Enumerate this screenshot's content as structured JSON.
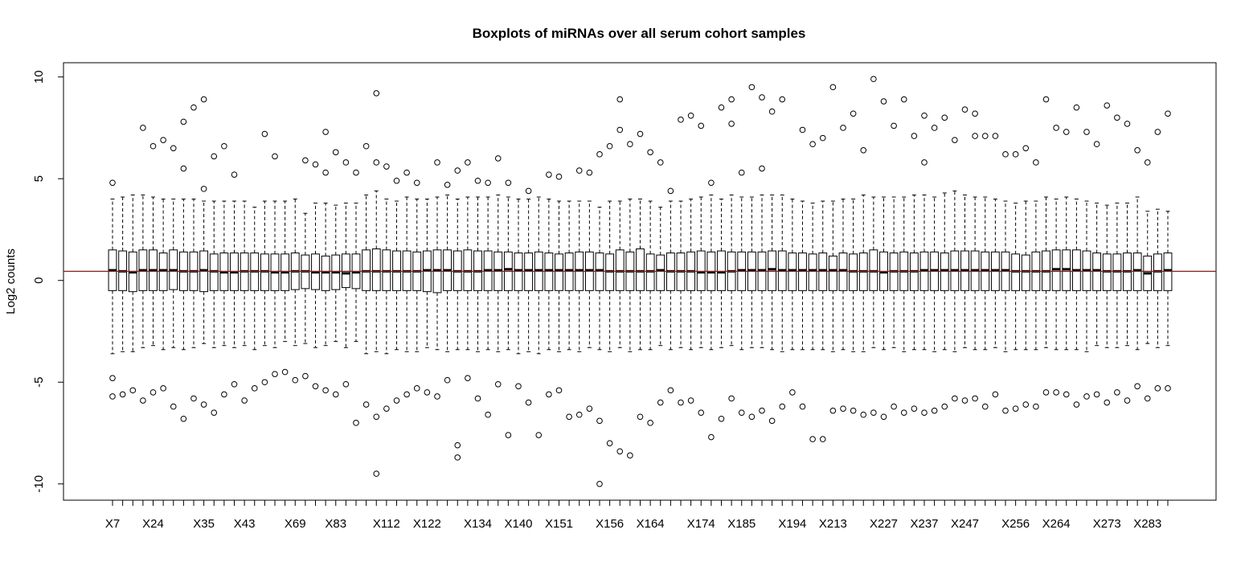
{
  "chart_data": {
    "type": "box",
    "title": "Boxplots of miRNAs over all serum cohort samples",
    "xlabel": "",
    "ylabel": "Log2 counts",
    "ylim": [
      -10.8,
      10.7
    ],
    "yticks": [
      -10,
      -5,
      0,
      5,
      10
    ],
    "xtick_labels": [
      "X7",
      "X24",
      "X35",
      "X43",
      "X69",
      "X83",
      "X112",
      "X122",
      "X134",
      "X140",
      "X151",
      "X156",
      "X164",
      "X174",
      "X185",
      "X194",
      "X213",
      "X227",
      "X237",
      "X247",
      "X256",
      "X264",
      "X273",
      "X283"
    ],
    "xtick_label_every": 2,
    "sample_count": 105,
    "reference_line": {
      "value": 0.45,
      "color": "#cc0000"
    },
    "box_summary": {
      "q1": [
        -0.5,
        -0.5,
        -0.55,
        -0.5,
        -0.5,
        -0.5,
        -0.45,
        -0.5,
        -0.5,
        -0.55,
        -0.5,
        -0.5,
        -0.5,
        -0.5,
        -0.5,
        -0.5,
        -0.5,
        -0.5,
        -0.45,
        -0.4,
        -0.45,
        -0.5,
        -0.45,
        -0.35,
        -0.4,
        -0.5,
        -0.5,
        -0.5,
        -0.5,
        -0.5,
        -0.5,
        -0.55,
        -0.6,
        -0.5,
        -0.5,
        -0.5,
        -0.5,
        -0.5,
        -0.5,
        -0.5,
        -0.5,
        -0.5,
        -0.5,
        -0.5,
        -0.5,
        -0.5,
        -0.5,
        -0.5,
        -0.5,
        -0.5,
        -0.5,
        -0.5,
        -0.5,
        -0.5,
        -0.5,
        -0.5,
        -0.5,
        -0.5,
        -0.5,
        -0.5,
        -0.5,
        -0.5,
        -0.5,
        -0.5,
        -0.5,
        -0.5,
        -0.5,
        -0.5,
        -0.5,
        -0.5,
        -0.5,
        -0.5,
        -0.5,
        -0.5,
        -0.5,
        -0.5,
        -0.5,
        -0.5,
        -0.5,
        -0.5,
        -0.5,
        -0.5,
        -0.5,
        -0.5,
        -0.5,
        -0.5,
        -0.5,
        -0.5,
        -0.5,
        -0.5,
        -0.5,
        -0.5,
        -0.5,
        -0.5,
        -0.5,
        -0.5,
        -0.5,
        -0.5,
        -0.5,
        -0.5,
        -0.5,
        -0.5,
        -0.5,
        -0.5,
        -0.5
      ],
      "median": [
        0.5,
        0.45,
        0.4,
        0.5,
        0.5,
        0.5,
        0.5,
        0.45,
        0.45,
        0.5,
        0.45,
        0.4,
        0.4,
        0.45,
        0.45,
        0.45,
        0.4,
        0.4,
        0.45,
        0.45,
        0.4,
        0.4,
        0.4,
        0.35,
        0.4,
        0.45,
        0.45,
        0.45,
        0.45,
        0.45,
        0.45,
        0.5,
        0.5,
        0.5,
        0.45,
        0.45,
        0.45,
        0.5,
        0.5,
        0.55,
        0.5,
        0.5,
        0.5,
        0.5,
        0.5,
        0.5,
        0.5,
        0.5,
        0.5,
        0.45,
        0.45,
        0.45,
        0.45,
        0.45,
        0.5,
        0.45,
        0.45,
        0.45,
        0.4,
        0.4,
        0.4,
        0.45,
        0.5,
        0.5,
        0.5,
        0.55,
        0.5,
        0.5,
        0.5,
        0.5,
        0.5,
        0.5,
        0.5,
        0.45,
        0.45,
        0.45,
        0.4,
        0.45,
        0.45,
        0.45,
        0.5,
        0.5,
        0.5,
        0.5,
        0.5,
        0.5,
        0.5,
        0.5,
        0.5,
        0.45,
        0.45,
        0.45,
        0.45,
        0.55,
        0.55,
        0.5,
        0.5,
        0.5,
        0.45,
        0.45,
        0.45,
        0.5,
        0.35,
        0.45,
        0.5
      ],
      "q3": [
        1.5,
        1.45,
        1.4,
        1.5,
        1.5,
        1.35,
        1.5,
        1.4,
        1.4,
        1.45,
        1.3,
        1.35,
        1.35,
        1.35,
        1.35,
        1.3,
        1.3,
        1.3,
        1.35,
        1.25,
        1.3,
        1.2,
        1.25,
        1.3,
        1.3,
        1.5,
        1.55,
        1.5,
        1.45,
        1.45,
        1.4,
        1.45,
        1.5,
        1.5,
        1.45,
        1.5,
        1.45,
        1.45,
        1.4,
        1.4,
        1.35,
        1.35,
        1.4,
        1.35,
        1.3,
        1.35,
        1.4,
        1.4,
        1.35,
        1.3,
        1.5,
        1.4,
        1.55,
        1.3,
        1.25,
        1.35,
        1.35,
        1.4,
        1.45,
        1.4,
        1.45,
        1.4,
        1.4,
        1.4,
        1.4,
        1.45,
        1.45,
        1.35,
        1.35,
        1.3,
        1.35,
        1.2,
        1.35,
        1.3,
        1.35,
        1.5,
        1.4,
        1.35,
        1.4,
        1.35,
        1.4,
        1.4,
        1.35,
        1.45,
        1.45,
        1.45,
        1.4,
        1.4,
        1.4,
        1.3,
        1.25,
        1.4,
        1.45,
        1.5,
        1.5,
        1.5,
        1.45,
        1.35,
        1.3,
        1.3,
        1.35,
        1.35,
        1.2,
        1.3,
        1.35
      ],
      "whisker_low": [
        -3.6,
        -3.5,
        -3.5,
        -3.3,
        -3.2,
        -3.4,
        -3.3,
        -3.4,
        -3.3,
        -3.1,
        -3.3,
        -3.2,
        -3.3,
        -3.2,
        -3.4,
        -3.2,
        -3.3,
        -3.0,
        -3.2,
        -3.1,
        -3.3,
        -3.2,
        -3.0,
        -3.3,
        -3.0,
        -3.6,
        -3.5,
        -3.6,
        -3.4,
        -3.5,
        -3.5,
        -3.3,
        -3.4,
        -3.5,
        -3.4,
        -3.4,
        -3.5,
        -3.4,
        -3.5,
        -3.4,
        -3.6,
        -3.5,
        -3.6,
        -3.4,
        -3.5,
        -3.4,
        -3.5,
        -3.3,
        -3.4,
        -3.5,
        -3.3,
        -3.5,
        -3.4,
        -3.4,
        -3.2,
        -3.4,
        -3.3,
        -3.4,
        -3.3,
        -3.4,
        -3.3,
        -3.2,
        -3.4,
        -3.3,
        -3.3,
        -3.4,
        -3.5,
        -3.4,
        -3.4,
        -3.4,
        -3.4,
        -3.5,
        -3.4,
        -3.5,
        -3.5,
        -3.3,
        -3.4,
        -3.3,
        -3.5,
        -3.4,
        -3.4,
        -3.5,
        -3.4,
        -3.5,
        -3.3,
        -3.4,
        -3.4,
        -3.3,
        -3.5,
        -3.4,
        -3.4,
        -3.4,
        -3.3,
        -3.4,
        -3.4,
        -3.4,
        -3.5,
        -3.2,
        -3.3,
        -3.3,
        -3.2,
        -3.4,
        -3.1,
        -3.3,
        -3.2
      ],
      "whisker_high": [
        4.0,
        4.1,
        4.2,
        4.2,
        4.1,
        4.0,
        4.0,
        4.0,
        4.0,
        3.9,
        3.9,
        3.9,
        3.9,
        3.9,
        3.6,
        3.9,
        3.9,
        3.9,
        4.0,
        3.3,
        3.8,
        3.8,
        3.7,
        3.8,
        3.8,
        4.2,
        4.4,
        4.0,
        3.9,
        4.1,
        4.0,
        4.0,
        4.1,
        4.2,
        4.0,
        4.1,
        4.1,
        4.1,
        4.2,
        4.1,
        4.0,
        4.0,
        4.1,
        4.0,
        3.9,
        3.9,
        3.9,
        3.9,
        3.6,
        3.9,
        3.9,
        4.0,
        4.0,
        3.9,
        3.6,
        3.9,
        3.9,
        4.0,
        4.1,
        4.2,
        4.0,
        4.2,
        4.1,
        4.1,
        4.2,
        4.2,
        4.2,
        4.0,
        3.9,
        3.8,
        3.9,
        3.9,
        4.0,
        4.0,
        4.2,
        4.1,
        4.1,
        4.1,
        4.1,
        4.2,
        4.2,
        4.1,
        4.3,
        4.4,
        4.2,
        4.1,
        4.1,
        4.0,
        3.9,
        3.8,
        3.9,
        3.9,
        4.1,
        4.0,
        4.1,
        4.0,
        3.9,
        3.8,
        3.7,
        3.8,
        3.8,
        4.1,
        3.4,
        3.5,
        3.4
      ]
    },
    "outliers_high": [
      [
        1,
        4.8
      ],
      [
        4,
        7.5
      ],
      [
        5,
        6.6
      ],
      [
        6,
        6.9
      ],
      [
        7,
        6.5
      ],
      [
        8,
        7.8
      ],
      [
        8,
        5.5
      ],
      [
        9,
        8.5
      ],
      [
        10,
        8.9
      ],
      [
        10,
        4.5
      ],
      [
        11,
        6.1
      ],
      [
        12,
        6.6
      ],
      [
        13,
        5.2
      ],
      [
        16,
        7.2
      ],
      [
        17,
        6.1
      ],
      [
        20,
        5.9
      ],
      [
        21,
        5.7
      ],
      [
        22,
        7.3
      ],
      [
        22,
        5.3
      ],
      [
        23,
        6.3
      ],
      [
        24,
        5.8
      ],
      [
        25,
        5.3
      ],
      [
        26,
        6.6
      ],
      [
        27,
        9.2
      ],
      [
        27,
        5.8
      ],
      [
        28,
        5.6
      ],
      [
        29,
        4.9
      ],
      [
        30,
        5.3
      ],
      [
        31,
        4.8
      ],
      [
        33,
        5.8
      ],
      [
        34,
        4.7
      ],
      [
        35,
        5.4
      ],
      [
        36,
        5.8
      ],
      [
        37,
        4.9
      ],
      [
        38,
        4.8
      ],
      [
        39,
        6.0
      ],
      [
        40,
        4.8
      ],
      [
        42,
        4.4
      ],
      [
        44,
        5.2
      ],
      [
        45,
        5.1
      ],
      [
        47,
        5.4
      ],
      [
        48,
        5.3
      ],
      [
        49,
        6.2
      ],
      [
        50,
        6.6
      ],
      [
        51,
        8.9
      ],
      [
        51,
        7.4
      ],
      [
        52,
        6.7
      ],
      [
        53,
        7.2
      ],
      [
        54,
        6.3
      ],
      [
        55,
        5.8
      ],
      [
        56,
        4.4
      ],
      [
        57,
        7.9
      ],
      [
        58,
        8.1
      ],
      [
        59,
        7.6
      ],
      [
        60,
        4.8
      ],
      [
        61,
        8.5
      ],
      [
        62,
        8.9
      ],
      [
        62,
        7.7
      ],
      [
        63,
        5.3
      ],
      [
        64,
        9.5
      ],
      [
        65,
        9.0
      ],
      [
        65,
        5.5
      ],
      [
        66,
        8.3
      ],
      [
        67,
        8.9
      ],
      [
        69,
        7.4
      ],
      [
        70,
        6.7
      ],
      [
        71,
        7.0
      ],
      [
        72,
        9.5
      ],
      [
        73,
        7.5
      ],
      [
        74,
        8.2
      ],
      [
        75,
        6.4
      ],
      [
        76,
        9.9
      ],
      [
        77,
        8.8
      ],
      [
        78,
        7.6
      ],
      [
        79,
        8.9
      ],
      [
        80,
        7.1
      ],
      [
        81,
        8.1
      ],
      [
        81,
        5.8
      ],
      [
        82,
        7.5
      ],
      [
        83,
        8.0
      ],
      [
        84,
        6.9
      ],
      [
        85,
        8.4
      ],
      [
        86,
        8.2
      ],
      [
        86,
        7.1
      ],
      [
        87,
        7.1
      ],
      [
        88,
        7.1
      ],
      [
        89,
        6.2
      ],
      [
        90,
        6.2
      ],
      [
        91,
        6.5
      ],
      [
        92,
        5.8
      ],
      [
        93,
        8.9
      ],
      [
        94,
        7.5
      ],
      [
        95,
        7.3
      ],
      [
        96,
        8.5
      ],
      [
        97,
        7.3
      ],
      [
        98,
        6.7
      ],
      [
        99,
        8.6
      ],
      [
        100,
        8.0
      ],
      [
        101,
        7.7
      ],
      [
        102,
        6.4
      ],
      [
        103,
        5.8
      ],
      [
        104,
        7.3
      ],
      [
        105,
        8.2
      ]
    ],
    "outliers_low": [
      [
        1,
        -5.7
      ],
      [
        1,
        -4.8
      ],
      [
        2,
        -5.6
      ],
      [
        3,
        -5.4
      ],
      [
        4,
        -5.9
      ],
      [
        5,
        -5.5
      ],
      [
        6,
        -5.3
      ],
      [
        7,
        -6.2
      ],
      [
        8,
        -6.8
      ],
      [
        9,
        -5.8
      ],
      [
        10,
        -6.1
      ],
      [
        11,
        -6.5
      ],
      [
        12,
        -5.6
      ],
      [
        13,
        -5.1
      ],
      [
        14,
        -5.9
      ],
      [
        15,
        -5.3
      ],
      [
        16,
        -5.0
      ],
      [
        17,
        -4.6
      ],
      [
        18,
        -4.5
      ],
      [
        19,
        -4.9
      ],
      [
        20,
        -4.7
      ],
      [
        21,
        -5.2
      ],
      [
        22,
        -5.4
      ],
      [
        23,
        -5.6
      ],
      [
        24,
        -5.1
      ],
      [
        25,
        -7.0
      ],
      [
        26,
        -6.1
      ],
      [
        27,
        -9.5
      ],
      [
        27,
        -6.7
      ],
      [
        28,
        -6.3
      ],
      [
        29,
        -5.9
      ],
      [
        30,
        -5.6
      ],
      [
        31,
        -5.3
      ],
      [
        32,
        -5.5
      ],
      [
        33,
        -5.7
      ],
      [
        34,
        -4.9
      ],
      [
        35,
        -8.1
      ],
      [
        35,
        -8.7
      ],
      [
        36,
        -4.8
      ],
      [
        37,
        -5.8
      ],
      [
        38,
        -6.6
      ],
      [
        39,
        -5.1
      ],
      [
        40,
        -7.6
      ],
      [
        41,
        -5.2
      ],
      [
        42,
        -6.0
      ],
      [
        43,
        -7.6
      ],
      [
        44,
        -5.6
      ],
      [
        45,
        -5.4
      ],
      [
        46,
        -6.7
      ],
      [
        47,
        -6.6
      ],
      [
        48,
        -6.3
      ],
      [
        49,
        -10.0
      ],
      [
        49,
        -6.9
      ],
      [
        50,
        -8.0
      ],
      [
        51,
        -8.4
      ],
      [
        52,
        -8.6
      ],
      [
        53,
        -6.7
      ],
      [
        54,
        -7.0
      ],
      [
        55,
        -6.0
      ],
      [
        56,
        -5.4
      ],
      [
        57,
        -6.0
      ],
      [
        58,
        -5.9
      ],
      [
        59,
        -6.5
      ],
      [
        60,
        -7.7
      ],
      [
        61,
        -6.8
      ],
      [
        62,
        -5.8
      ],
      [
        63,
        -6.5
      ],
      [
        64,
        -6.7
      ],
      [
        65,
        -6.4
      ],
      [
        66,
        -6.9
      ],
      [
        67,
        -6.2
      ],
      [
        68,
        -5.5
      ],
      [
        69,
        -6.2
      ],
      [
        70,
        -7.8
      ],
      [
        71,
        -7.8
      ],
      [
        72,
        -6.4
      ],
      [
        73,
        -6.3
      ],
      [
        74,
        -6.4
      ],
      [
        75,
        -6.6
      ],
      [
        76,
        -6.5
      ],
      [
        77,
        -6.7
      ],
      [
        78,
        -6.2
      ],
      [
        79,
        -6.5
      ],
      [
        80,
        -6.3
      ],
      [
        81,
        -6.5
      ],
      [
        82,
        -6.4
      ],
      [
        83,
        -6.2
      ],
      [
        84,
        -5.8
      ],
      [
        85,
        -5.9
      ],
      [
        86,
        -5.8
      ],
      [
        87,
        -6.2
      ],
      [
        88,
        -5.6
      ],
      [
        89,
        -6.4
      ],
      [
        90,
        -6.3
      ],
      [
        91,
        -6.1
      ],
      [
        92,
        -6.2
      ],
      [
        93,
        -5.5
      ],
      [
        94,
        -5.5
      ],
      [
        95,
        -5.6
      ],
      [
        96,
        -6.1
      ],
      [
        97,
        -5.7
      ],
      [
        98,
        -5.6
      ],
      [
        99,
        -6.0
      ],
      [
        100,
        -5.5
      ],
      [
        101,
        -5.9
      ],
      [
        102,
        -5.2
      ],
      [
        103,
        -5.8
      ],
      [
        104,
        -5.3
      ],
      [
        105,
        -5.3
      ]
    ],
    "grid": false,
    "legend": "none"
  }
}
